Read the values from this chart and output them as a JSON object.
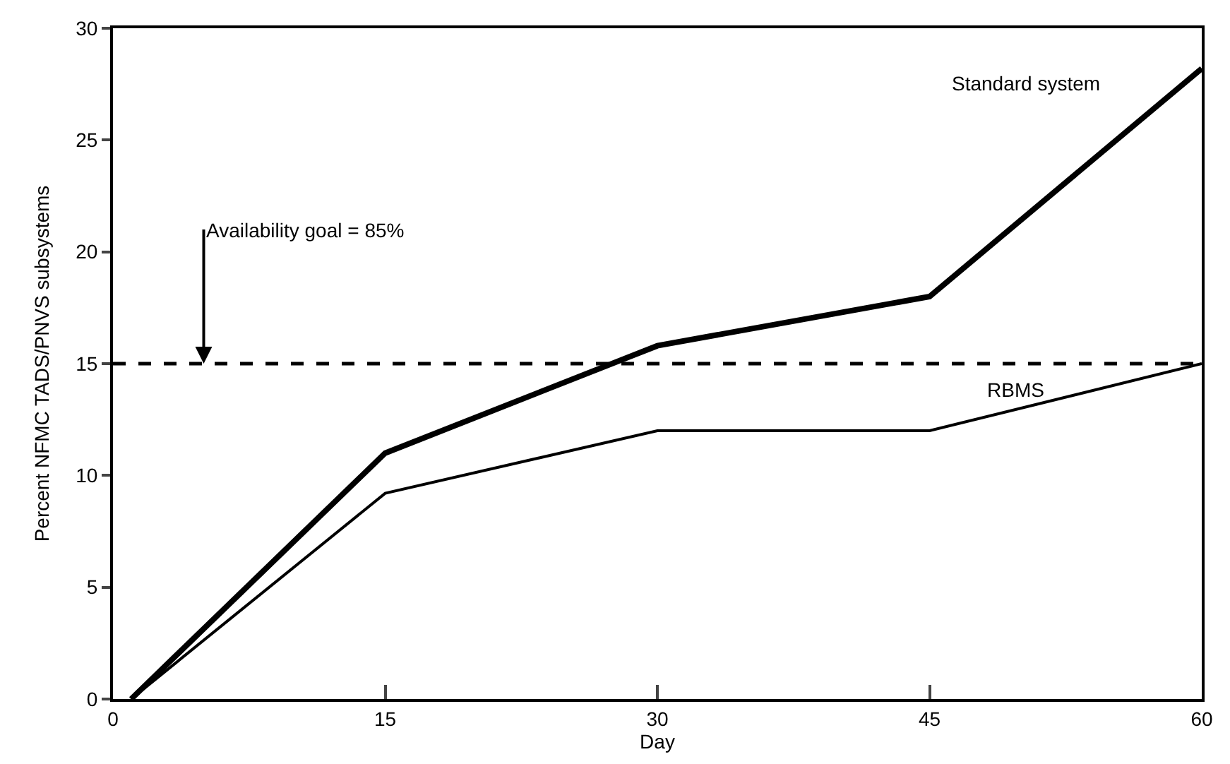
{
  "chart_data": {
    "type": "line",
    "xlabel": "Day",
    "ylabel": "Percent NFMC TADS/PNVS subsystems",
    "x": [
      1,
      15,
      30,
      45,
      60
    ],
    "series": [
      {
        "name": "Standard system",
        "color": "#000000",
        "values": [
          0,
          11,
          15.8,
          18,
          28.2
        ]
      },
      {
        "name": "RBMS",
        "color": "#000000",
        "values": [
          0,
          9.2,
          12,
          12,
          15
        ]
      }
    ],
    "xlim": [
      0,
      60
    ],
    "xticks": [
      0,
      15,
      30,
      45,
      60
    ],
    "ylim": [
      0,
      30
    ],
    "yticks": [
      0,
      5,
      10,
      15,
      20,
      25,
      30
    ],
    "ref_lines": [
      {
        "axis": "y",
        "value": 15,
        "color": "#000000",
        "line_style": "dashed"
      }
    ],
    "annotations": [
      {
        "text": "Availability goal = 85%",
        "x": 5,
        "y": 15
      }
    ],
    "legend": false,
    "marker": "none",
    "line_style": "solid"
  }
}
